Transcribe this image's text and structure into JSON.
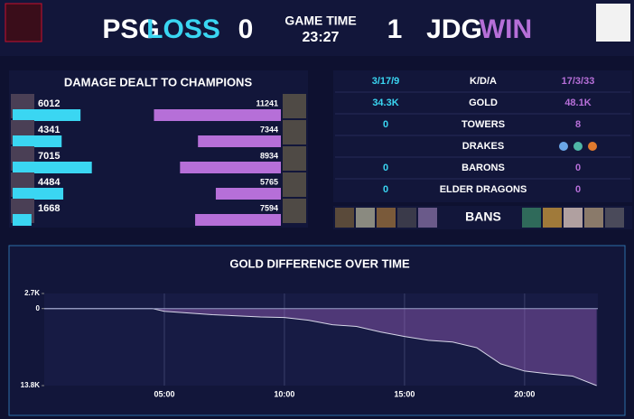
{
  "header": {
    "team1": "PSG",
    "result1": "LOSS",
    "score1": 0,
    "time_label": "GAME TIME",
    "time": "23:27",
    "score2": 1,
    "team2": "JDG",
    "result2": "WIN"
  },
  "stats": {
    "rows": [
      {
        "left": "3/17/9",
        "label": "K/D/A",
        "right": "17/3/33"
      },
      {
        "left": "34.3K",
        "label": "GOLD",
        "right": "48.1K"
      },
      {
        "left": 0,
        "label": "TOWERS",
        "right": 8
      },
      {
        "label": "DRAKES"
      },
      {
        "left": 0,
        "label": "BARONS",
        "right": 0
      },
      {
        "left": 0,
        "label": "ELDER DRAGONS",
        "right": 0
      }
    ],
    "bans_label": "BANS"
  },
  "chart_data": [
    {
      "type": "bar",
      "title": "DAMAGE DEALT TO CHAMPIONS",
      "orientation": "horizontal",
      "categories": [
        null,
        null,
        null,
        null,
        null
      ],
      "series": [
        {
          "color": "#3ad6f2",
          "values": [
            6012,
            4341,
            7015,
            4484,
            1668
          ]
        },
        {
          "color": "#b66fd8",
          "values": [
            11241,
            7344,
            8934,
            5765,
            7594
          ]
        }
      ],
      "xlim": [
        0,
        12000
      ]
    },
    {
      "type": "area",
      "title": "GOLD DIFFERENCE OVER TIME",
      "color": "#b66fd8",
      "x": [
        0,
        1,
        2,
        3,
        4,
        4.5,
        5,
        6,
        7,
        8,
        9,
        10,
        11,
        12,
        13,
        14,
        15,
        16,
        17,
        18,
        19,
        20,
        21,
        22,
        23
      ],
      "values": [
        0,
        0,
        0,
        0,
        0,
        0,
        -500,
        -800,
        -1100,
        -1300,
        -1500,
        -1600,
        -2100,
        -2900,
        -3200,
        -4200,
        -5000,
        -5700,
        -6000,
        -7000,
        -9900,
        -11200,
        -11700,
        -12100,
        -13800
      ],
      "xlim": [
        0,
        23.05
      ],
      "xticks": [
        {
          "value": 5,
          "label": "05:00"
        },
        {
          "value": 10,
          "label": "10:00"
        },
        {
          "value": 15,
          "label": "15:00"
        },
        {
          "value": 20,
          "label": "20:00"
        }
      ],
      "ylim": [
        -13800,
        2700
      ],
      "yticks": [
        {
          "value": 2700,
          "label": "2.7K"
        },
        0,
        {
          "value": -13800,
          "label": "13.8K"
        }
      ],
      "grid": true
    }
  ]
}
